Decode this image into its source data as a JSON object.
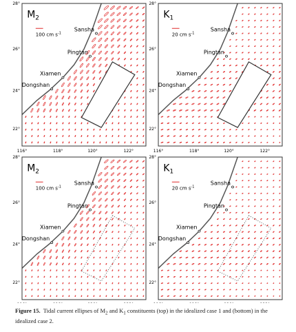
{
  "panels": [
    {
      "constituent": "M",
      "subscript": "2",
      "scale_text": "100 cm s",
      "scale_exp": "-1",
      "places": [
        "Sansha",
        "Pingtan",
        "Xiamen",
        "Dongshan"
      ]
    },
    {
      "constituent": "K",
      "subscript": "1",
      "scale_text": "20 cm s",
      "scale_exp": "-1",
      "places": [
        "Sansha",
        "Pingtan",
        "Xiamen",
        "Dongshan"
      ]
    },
    {
      "constituent": "M",
      "subscript": "2",
      "scale_text": "100 cm s",
      "scale_exp": "-1",
      "places": [
        "Sansha",
        "Pingtan",
        "Xiamen",
        "Dongshan"
      ]
    },
    {
      "constituent": "K",
      "subscript": "1",
      "scale_text": "20 cm s",
      "scale_exp": "-1",
      "places": [
        "Sansha",
        "Pingtan",
        "Xiamen",
        "Dongshan"
      ]
    }
  ],
  "x_ticks": [
    "116°",
    "118°",
    "120°",
    "122°"
  ],
  "y_ticks": [
    "28°",
    "26°",
    "24°",
    "22°"
  ],
  "caption": {
    "label": "Figure 15.",
    "parts": [
      "Tidal current ellipses of M",
      "2",
      " and K",
      "1",
      " constituents (top) in the idealized case 1 and (bottom) in the idealized case 2."
    ]
  }
}
